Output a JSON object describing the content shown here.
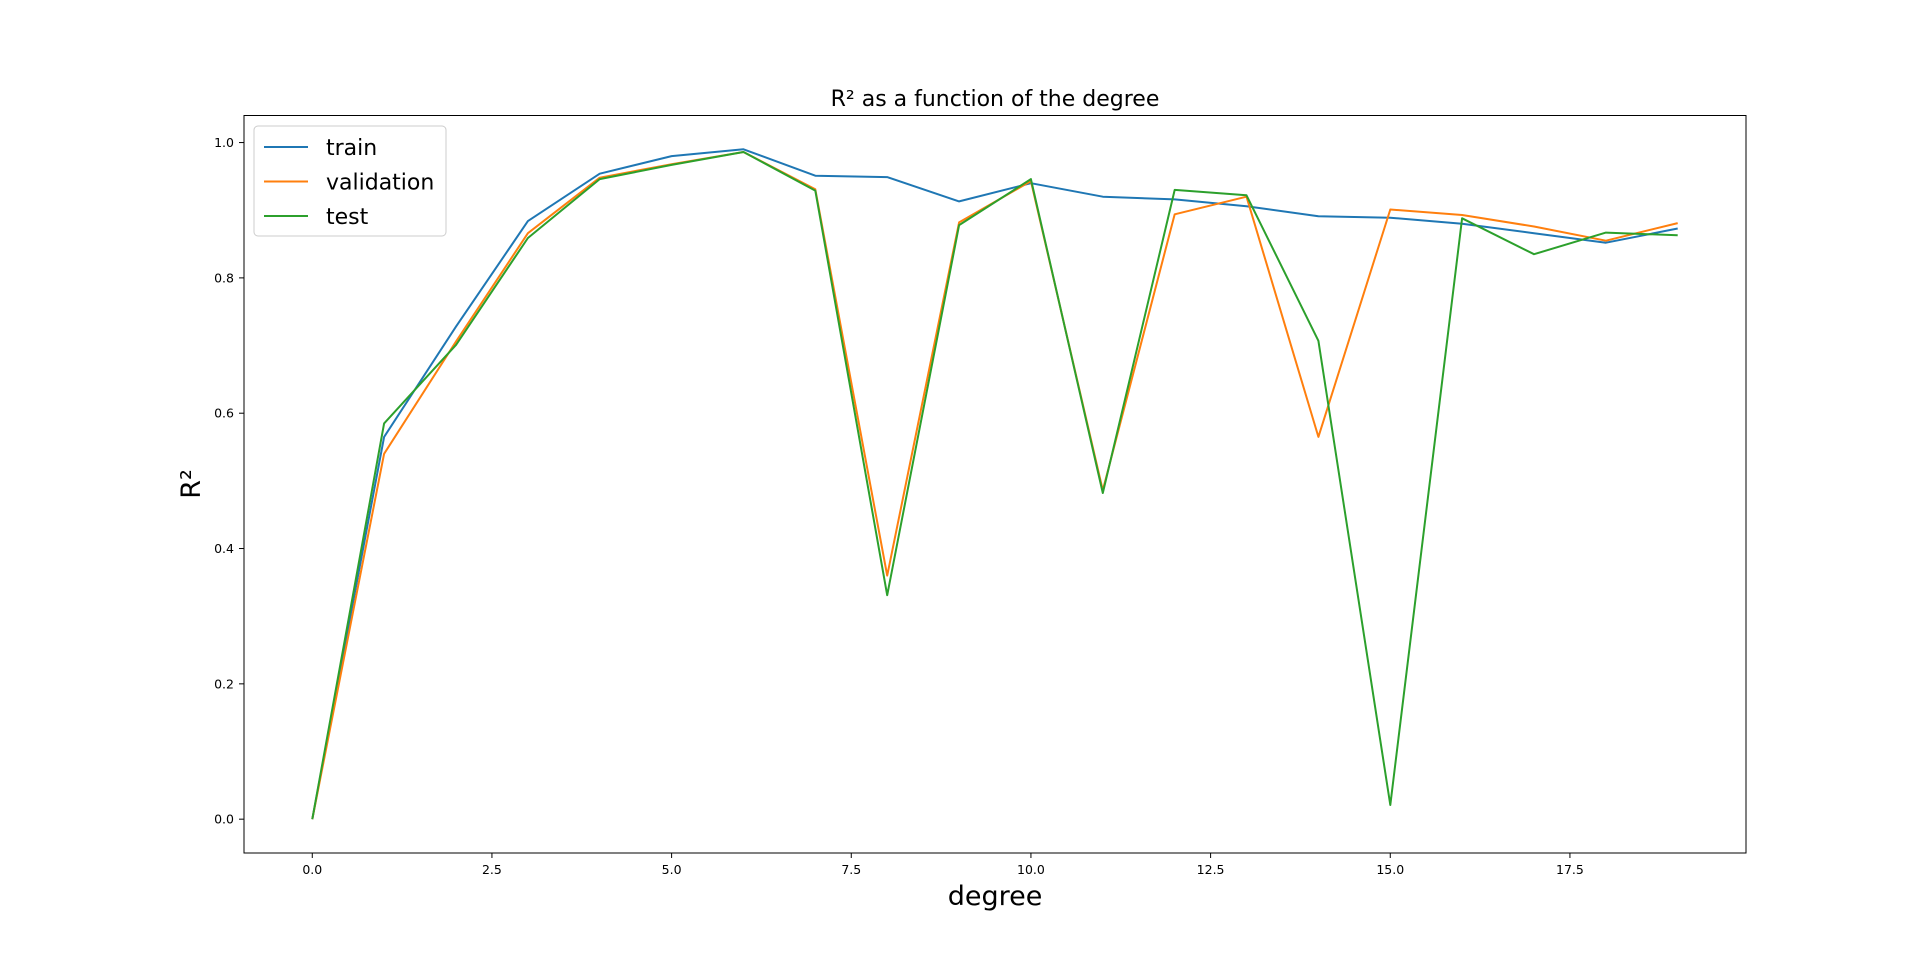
{
  "chart_data": {
    "type": "line",
    "title": "R² as a function of the degree",
    "xlabel": "degree",
    "ylabel": "R²",
    "xlim": [
      -0.95,
      19.95
    ],
    "ylim": [
      -0.05,
      1.04
    ],
    "x_ticks": [
      0.0,
      2.5,
      5.0,
      7.5,
      10.0,
      12.5,
      15.0,
      17.5
    ],
    "x_tick_labels": [
      "0.0",
      "2.5",
      "5.0",
      "7.5",
      "10.0",
      "12.5",
      "15.0",
      "17.5"
    ],
    "y_ticks": [
      0.0,
      0.2,
      0.4,
      0.6,
      0.8,
      1.0
    ],
    "y_tick_labels": [
      "0.0",
      "0.2",
      "0.4",
      "0.6",
      "0.8",
      "1.0"
    ],
    "grid": false,
    "legend_position": "top-left",
    "x": [
      0,
      1,
      2,
      3,
      4,
      5,
      6,
      7,
      8,
      9,
      10,
      11,
      12,
      13,
      14,
      15,
      16,
      17,
      18,
      19
    ],
    "series": [
      {
        "name": "train",
        "color": "#1f77b4",
        "values": [
          0.0,
          0.565,
          0.728,
          0.884,
          0.954,
          0.98,
          0.99,
          0.951,
          0.949,
          0.913,
          0.94,
          0.92,
          0.916,
          0.906,
          0.891,
          0.889,
          0.88,
          0.866,
          0.852,
          0.873
        ]
      },
      {
        "name": "validation",
        "color": "#ff7f0e",
        "values": [
          0.0,
          0.54,
          0.706,
          0.866,
          0.948,
          0.968,
          0.986,
          0.931,
          0.36,
          0.882,
          0.943,
          0.486,
          0.894,
          0.92,
          0.565,
          0.901,
          0.893,
          0.876,
          0.855,
          0.881
        ]
      },
      {
        "name": "test",
        "color": "#2ca02c",
        "values": [
          0.0,
          0.585,
          0.701,
          0.859,
          0.946,
          0.967,
          0.986,
          0.929,
          0.331,
          0.878,
          0.946,
          0.482,
          0.93,
          0.922,
          0.707,
          0.021,
          0.888,
          0.835,
          0.867,
          0.863
        ]
      }
    ]
  }
}
